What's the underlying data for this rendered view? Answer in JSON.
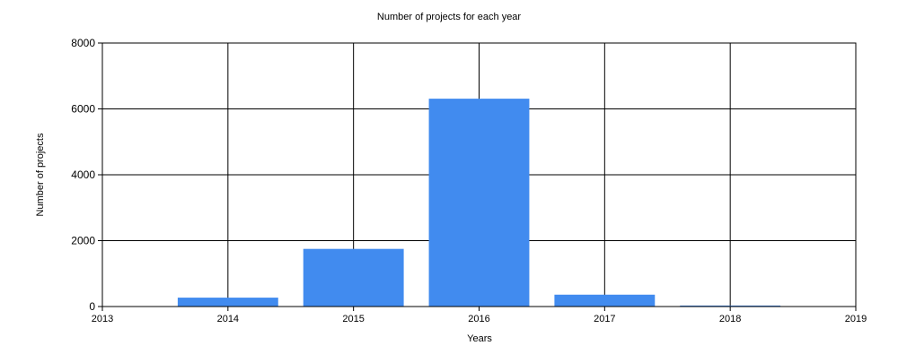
{
  "chart_data": {
    "type": "bar",
    "title": "Number of projects for each year",
    "xlabel": "Years",
    "ylabel": "Number of projects",
    "categories": [
      "2014",
      "2015",
      "2016",
      "2017",
      "2018"
    ],
    "x": [
      2014,
      2015,
      2016,
      2017,
      2018
    ],
    "values": [
      270,
      1750,
      6310,
      360,
      30
    ],
    "xlim": [
      2013,
      2019
    ],
    "ylim": [
      0,
      8000
    ],
    "xticks": [
      "2013",
      "2014",
      "2015",
      "2016",
      "2017",
      "2018",
      "2019"
    ],
    "yticks": [
      "0",
      "2000",
      "4000",
      "6000",
      "8000"
    ],
    "grid": true,
    "legend": "none",
    "bar_color": "#418BEF",
    "axis_color": "#000000"
  }
}
